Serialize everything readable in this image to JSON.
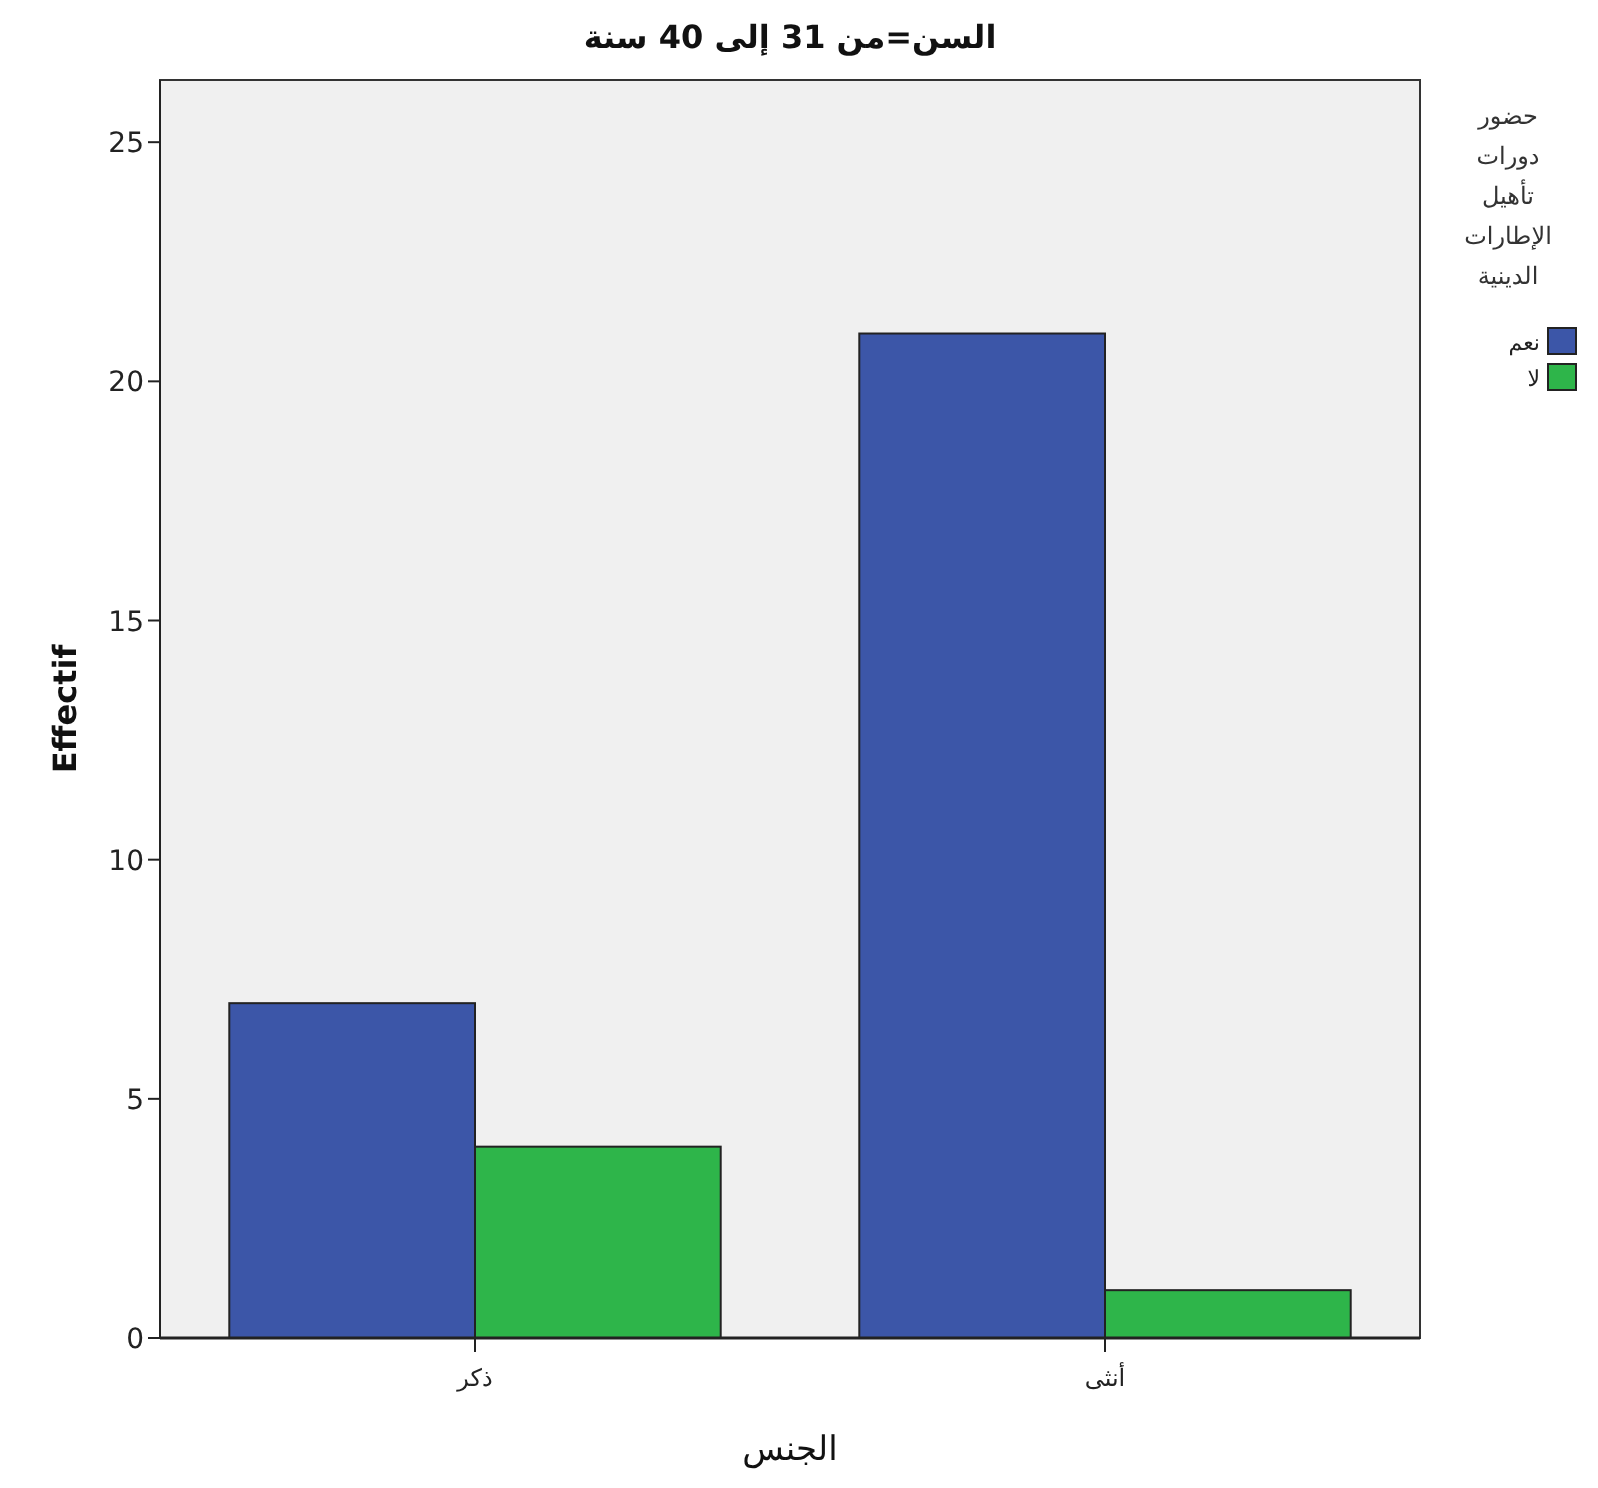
{
  "chart_data": {
    "type": "bar",
    "title": "السن=من 31 إلى 40 سنة",
    "xlabel": "الجنس",
    "ylabel": "Effectif",
    "legend_title": "حضور دورات تأهيل الإطارات الدينية",
    "categories": [
      "ذكر",
      "أنثى"
    ],
    "series": [
      {
        "name": "نعم",
        "color": "#3c56a8",
        "values": [
          7,
          21
        ]
      },
      {
        "name": "لا",
        "color": "#2eb54a",
        "values": [
          4,
          1
        ]
      }
    ],
    "ylim": [
      0,
      26.3
    ],
    "yticks": [
      0,
      5,
      10,
      15,
      20,
      25
    ],
    "grid": false,
    "legend": "right"
  }
}
